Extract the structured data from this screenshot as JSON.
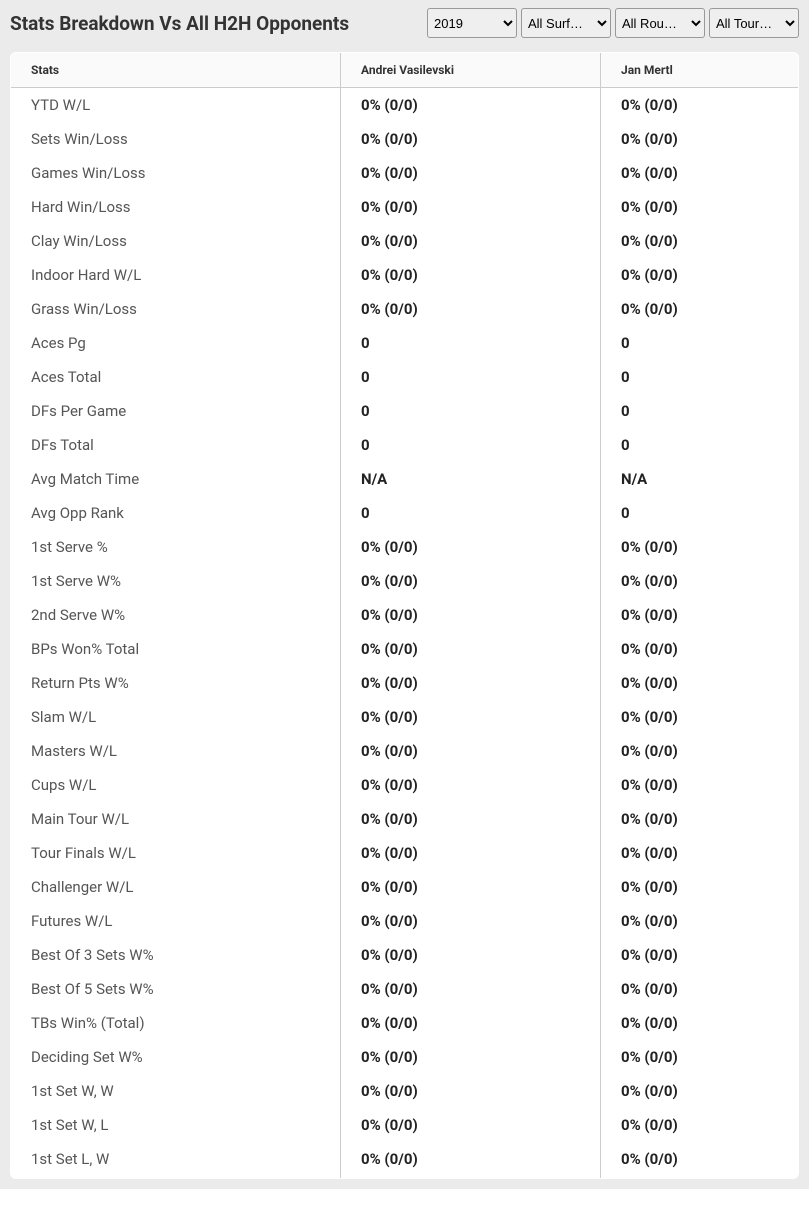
{
  "header": {
    "title": "Stats Breakdown Vs All H2H Opponents",
    "filters": {
      "year": "2019",
      "surface": "All Surf…",
      "round": "All Rou…",
      "tour": "All Tour…"
    }
  },
  "table": {
    "columns": {
      "stats": "Stats",
      "player1": "Andrei Vasilevski",
      "player2": "Jan Mertl"
    },
    "rows": [
      {
        "stat": "YTD W/L",
        "p1": "0% (0/0)",
        "p2": "0% (0/0)"
      },
      {
        "stat": "Sets Win/Loss",
        "p1": "0% (0/0)",
        "p2": "0% (0/0)"
      },
      {
        "stat": "Games Win/Loss",
        "p1": "0% (0/0)",
        "p2": "0% (0/0)"
      },
      {
        "stat": "Hard Win/Loss",
        "p1": "0% (0/0)",
        "p2": "0% (0/0)"
      },
      {
        "stat": "Clay Win/Loss",
        "p1": "0% (0/0)",
        "p2": "0% (0/0)"
      },
      {
        "stat": "Indoor Hard W/L",
        "p1": "0% (0/0)",
        "p2": "0% (0/0)"
      },
      {
        "stat": "Grass Win/Loss",
        "p1": "0% (0/0)",
        "p2": "0% (0/0)"
      },
      {
        "stat": "Aces Pg",
        "p1": "0",
        "p2": "0"
      },
      {
        "stat": "Aces Total",
        "p1": "0",
        "p2": "0"
      },
      {
        "stat": "DFs Per Game",
        "p1": "0",
        "p2": "0"
      },
      {
        "stat": "DFs Total",
        "p1": "0",
        "p2": "0"
      },
      {
        "stat": "Avg Match Time",
        "p1": "N/A",
        "p2": "N/A"
      },
      {
        "stat": "Avg Opp Rank",
        "p1": "0",
        "p2": "0"
      },
      {
        "stat": "1st Serve %",
        "p1": "0% (0/0)",
        "p2": "0% (0/0)"
      },
      {
        "stat": "1st Serve W%",
        "p1": "0% (0/0)",
        "p2": "0% (0/0)"
      },
      {
        "stat": "2nd Serve W%",
        "p1": "0% (0/0)",
        "p2": "0% (0/0)"
      },
      {
        "stat": "BPs Won% Total",
        "p1": "0% (0/0)",
        "p2": "0% (0/0)"
      },
      {
        "stat": "Return Pts W%",
        "p1": "0% (0/0)",
        "p2": "0% (0/0)"
      },
      {
        "stat": "Slam W/L",
        "p1": "0% (0/0)",
        "p2": "0% (0/0)"
      },
      {
        "stat": "Masters W/L",
        "p1": "0% (0/0)",
        "p2": "0% (0/0)"
      },
      {
        "stat": "Cups W/L",
        "p1": "0% (0/0)",
        "p2": "0% (0/0)"
      },
      {
        "stat": "Main Tour W/L",
        "p1": "0% (0/0)",
        "p2": "0% (0/0)"
      },
      {
        "stat": "Tour Finals W/L",
        "p1": "0% (0/0)",
        "p2": "0% (0/0)"
      },
      {
        "stat": "Challenger W/L",
        "p1": "0% (0/0)",
        "p2": "0% (0/0)"
      },
      {
        "stat": "Futures W/L",
        "p1": "0% (0/0)",
        "p2": "0% (0/0)"
      },
      {
        "stat": "Best Of 3 Sets W%",
        "p1": "0% (0/0)",
        "p2": "0% (0/0)"
      },
      {
        "stat": "Best Of 5 Sets W%",
        "p1": "0% (0/0)",
        "p2": "0% (0/0)"
      },
      {
        "stat": "TBs Win% (Total)",
        "p1": "0% (0/0)",
        "p2": "0% (0/0)"
      },
      {
        "stat": "Deciding Set W%",
        "p1": "0% (0/0)",
        "p2": "0% (0/0)"
      },
      {
        "stat": "1st Set W, W",
        "p1": "0% (0/0)",
        "p2": "0% (0/0)"
      },
      {
        "stat": "1st Set W, L",
        "p1": "0% (0/0)",
        "p2": "0% (0/0)"
      },
      {
        "stat": "1st Set L, W",
        "p1": "0% (0/0)",
        "p2": "0% (0/0)"
      }
    ]
  }
}
